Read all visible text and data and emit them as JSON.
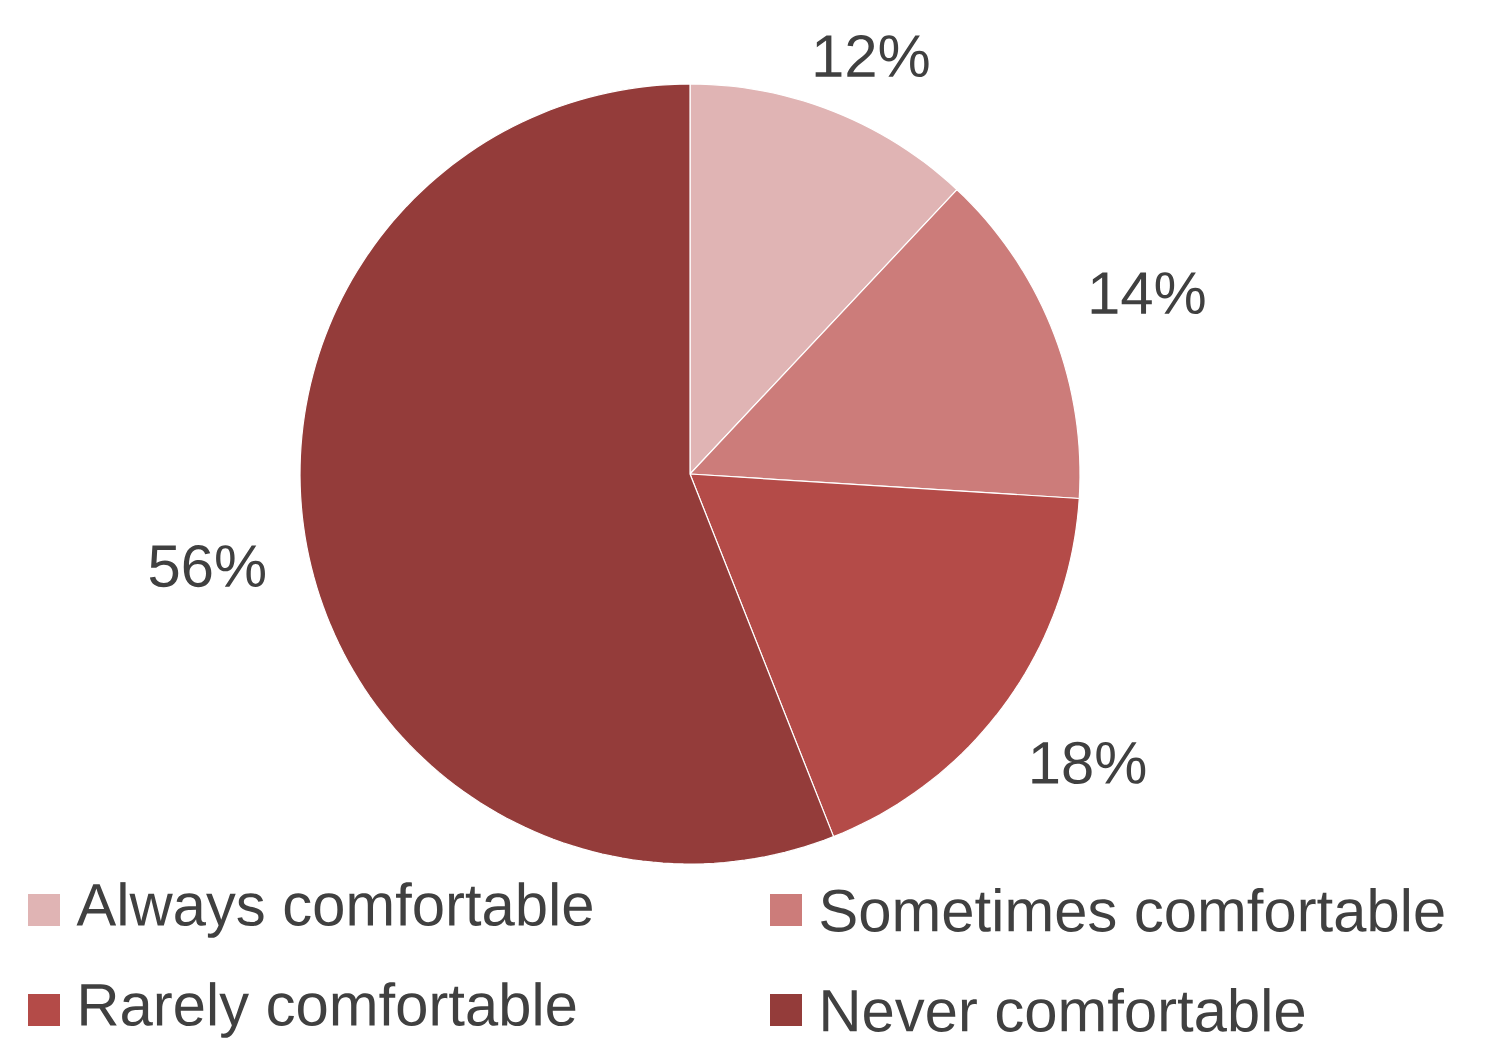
{
  "chart_data": {
    "type": "pie",
    "categories": [
      "Always comfortable",
      "Sometimes comfortable",
      "Rarely comfortable",
      "Never comfortable"
    ],
    "values": [
      12,
      14,
      18,
      56
    ],
    "value_labels": [
      "12%",
      "14%",
      "18%",
      "56%"
    ],
    "colors": [
      "#e0b4b4",
      "#cc7c7a",
      "#b44b48",
      "#943c3a"
    ],
    "legend": "bottom"
  }
}
